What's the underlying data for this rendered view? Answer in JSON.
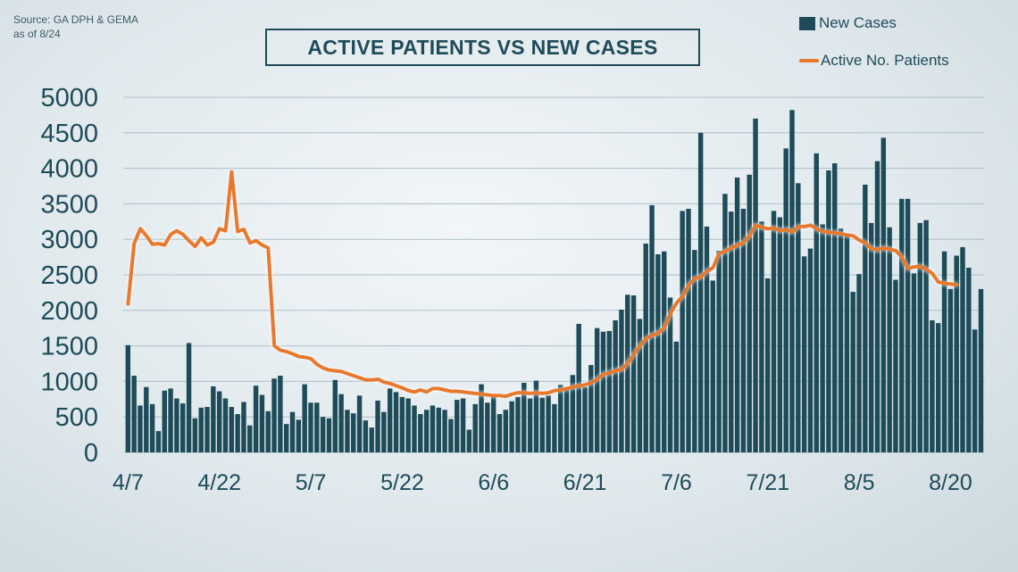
{
  "source": {
    "line1": "Source: GA DPH & GEMA",
    "line2": "as of 8/24"
  },
  "chart_data": {
    "type": "bar",
    "title": "ACTIVE PATIENTS VS NEW CASES",
    "xlabel": "",
    "ylabel": "",
    "ylim": [
      0,
      5000
    ],
    "yticks": [
      "0",
      "500",
      "1000",
      "1500",
      "2000",
      "2500",
      "3000",
      "3500",
      "4000",
      "4500",
      "5000"
    ],
    "grid": true,
    "legend_position": "top-right",
    "colors": {
      "bars": "#1d4b58",
      "line": "#e8792c"
    },
    "x_start": "4/7",
    "x_end": "8/23",
    "xticks": [
      {
        "label": "4/7",
        "day": 0
      },
      {
        "label": "4/22",
        "day": 15
      },
      {
        "label": "5/7",
        "day": 30
      },
      {
        "label": "5/22",
        "day": 45
      },
      {
        "label": "6/6",
        "day": 60
      },
      {
        "label": "6/21",
        "day": 75
      },
      {
        "label": "7/6",
        "day": 90
      },
      {
        "label": "7/21",
        "day": 105
      },
      {
        "label": "8/5",
        "day": 120
      },
      {
        "label": "8/20",
        "day": 135
      }
    ],
    "series": [
      {
        "name": "New Cases",
        "kind": "bar",
        "values": [
          1510,
          1080,
          660,
          920,
          680,
          300,
          870,
          900,
          760,
          690,
          1540,
          480,
          630,
          640,
          930,
          860,
          760,
          640,
          540,
          710,
          380,
          940,
          810,
          580,
          1040,
          1080,
          400,
          570,
          460,
          960,
          700,
          700,
          500,
          480,
          1020,
          820,
          600,
          550,
          800,
          450,
          350,
          730,
          570,
          900,
          850,
          780,
          760,
          660,
          540,
          600,
          660,
          630,
          600,
          470,
          740,
          760,
          320,
          680,
          960,
          700,
          790,
          540,
          600,
          720,
          780,
          980,
          760,
          1010,
          770,
          800,
          680,
          950,
          890,
          1090,
          1810,
          920,
          1230,
          1750,
          1700,
          1710,
          1860,
          2010,
          2220,
          2210,
          1880,
          2940,
          3480,
          2790,
          2830,
          2180,
          1560,
          3400,
          3430,
          2850,
          4500,
          3180,
          2420,
          2840,
          3640,
          3390,
          3870,
          3430,
          3910,
          4700,
          3250,
          2450,
          3400,
          3310,
          4280,
          4820,
          3790,
          2760,
          2870,
          4210,
          3210,
          3970,
          4070,
          3150,
          3080,
          2260,
          2510,
          3770,
          3230,
          4100,
          4430,
          3170,
          2430,
          3570,
          3570,
          2520,
          3230,
          3270,
          1860,
          1820,
          2830,
          2300,
          2770,
          2890,
          2600,
          1730,
          2300
        ]
      },
      {
        "name": "Active No. Patients",
        "kind": "line",
        "values": [
          2090,
          2940,
          3150,
          3050,
          2930,
          2940,
          2920,
          3070,
          3120,
          3070,
          2980,
          2900,
          3020,
          2920,
          2960,
          3150,
          3120,
          3950,
          3110,
          3140,
          2950,
          2980,
          2920,
          2880,
          1500,
          1440,
          1420,
          1390,
          1350,
          1340,
          1320,
          1240,
          1190,
          1160,
          1150,
          1140,
          1110,
          1080,
          1050,
          1020,
          1020,
          1030,
          990,
          970,
          940,
          910,
          870,
          850,
          880,
          850,
          900,
          900,
          880,
          860,
          860,
          850,
          840,
          830,
          820,
          810,
          800,
          800,
          790,
          820,
          840,
          840,
          830,
          840,
          830,
          840,
          870,
          880,
          900,
          920,
          940,
          950,
          980,
          1030,
          1100,
          1120,
          1150,
          1170,
          1250,
          1380,
          1500,
          1600,
          1650,
          1680,
          1750,
          1950,
          2100,
          2200,
          2350,
          2450,
          2470,
          2550,
          2600,
          2800,
          2830,
          2880,
          2920,
          2950,
          3050,
          3200,
          3170,
          3150,
          3160,
          3120,
          3140,
          3100,
          3180,
          3180,
          3200,
          3150,
          3110,
          3100,
          3090,
          3080,
          3060,
          3050,
          2990,
          2950,
          2870,
          2850,
          2880,
          2860,
          2840,
          2750,
          2590,
          2610,
          2620,
          2580,
          2520,
          2400,
          2380,
          2370,
          2360
        ]
      }
    ]
  }
}
